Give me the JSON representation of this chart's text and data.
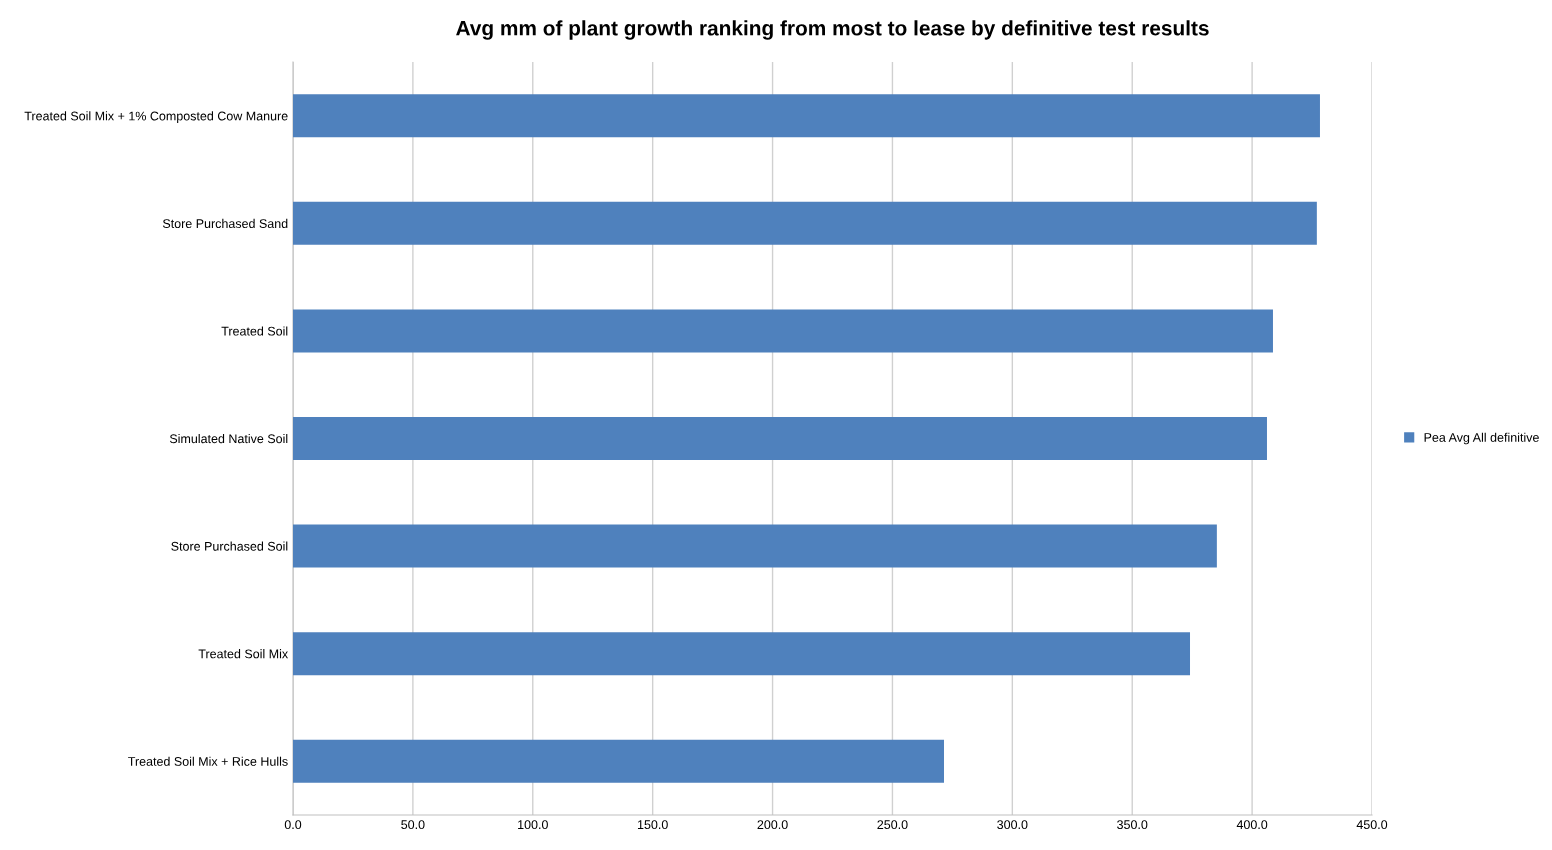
{
  "chart_data": {
    "type": "bar",
    "orientation": "horizontal",
    "title": "Avg mm of plant growth ranking from most to lease by definitive test results",
    "categories": [
      "Treated Soil Mix + 1% Composted Cow Manure",
      "Store Purchased Sand",
      "Treated Soil",
      "Simulated Native Soil",
      "Store Purchased Soil",
      "Treated Soil Mix",
      "Treated Soil Mix + Rice Hulls"
    ],
    "series": [
      {
        "name": "Pea Avg All definitive",
        "color": "#4f81bd",
        "values": [
          428.3,
          427.0,
          408.7,
          406.2,
          385.3,
          374.1,
          271.5
        ]
      }
    ],
    "xlim": [
      0,
      450
    ],
    "xticks": [
      {
        "value": 0,
        "label": "0.0"
      },
      {
        "value": 50,
        "label": "50.0"
      },
      {
        "value": 100,
        "label": "100.0"
      },
      {
        "value": 150,
        "label": "150.0"
      },
      {
        "value": 200,
        "label": "200.0"
      },
      {
        "value": 250,
        "label": "250.0"
      },
      {
        "value": 300,
        "label": "300.0"
      },
      {
        "value": 350,
        "label": "350.0"
      },
      {
        "value": 400,
        "label": "400.0"
      },
      {
        "value": 450,
        "label": "450.0"
      }
    ],
    "grid": "x",
    "legend": "right"
  }
}
